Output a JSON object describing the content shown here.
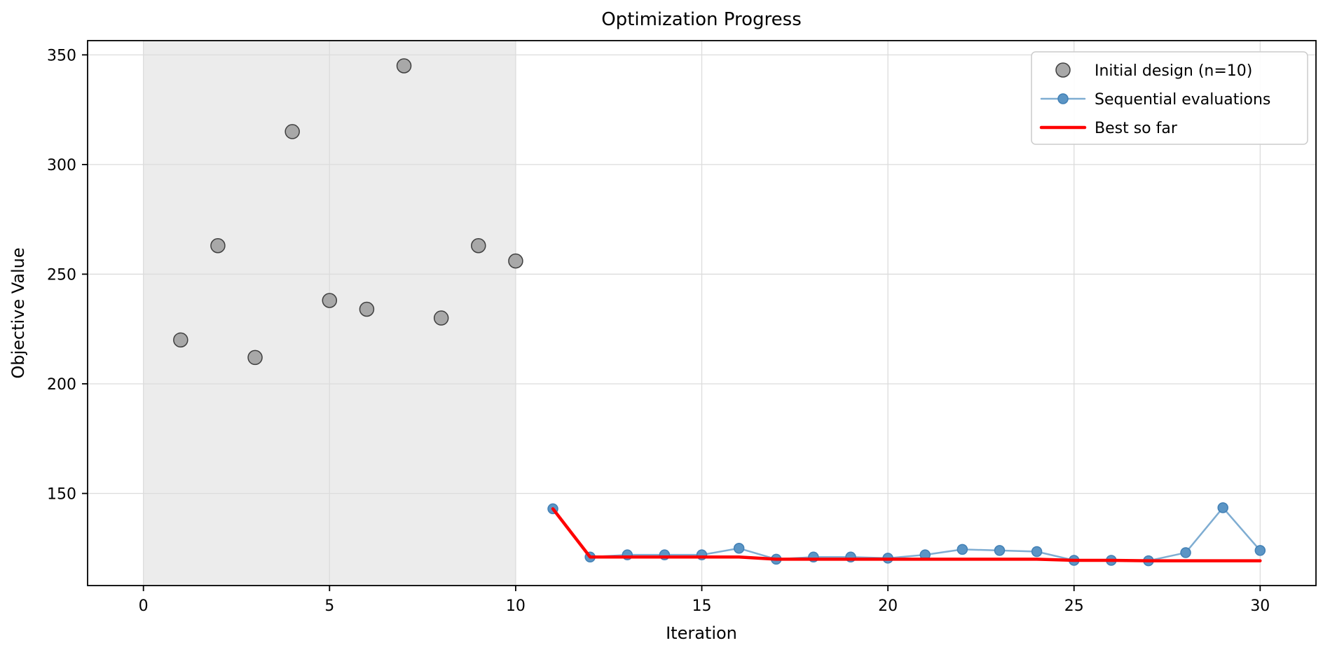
{
  "figure": {
    "title": "Optimization Progress",
    "xlabel": "Iteration",
    "ylabel": "Objective Value"
  },
  "chart_data": {
    "type": "scatter",
    "title": "Optimization Progress",
    "xlabel": "Iteration",
    "ylabel": "Objective Value",
    "xlim": [
      -1.5,
      31.5
    ],
    "ylim": [
      108,
      356.5
    ],
    "xticks": [
      0,
      5,
      10,
      15,
      20,
      25,
      30
    ],
    "yticks": [
      150,
      200,
      250,
      300,
      350
    ],
    "grid": true,
    "grid_color": "#dcdcdc",
    "background_color": "#ffffff",
    "shaded_region": {
      "x_start": 0,
      "x_end": 10,
      "color": "#ececec",
      "meaning": "initial design phase"
    },
    "series": [
      {
        "name": "Initial design (n=10)",
        "type": "scatter",
        "x": [
          1,
          2,
          3,
          4,
          5,
          6,
          7,
          8,
          9,
          10
        ],
        "y": [
          220,
          263,
          212,
          315,
          238,
          234,
          345,
          230,
          263,
          256
        ],
        "marker_color": "#a8a8a8",
        "marker_edge_color": "#3f3f3f",
        "marker_radius": 10
      },
      {
        "name": "Sequential evaluations",
        "type": "line_markers",
        "x": [
          11,
          12,
          13,
          14,
          15,
          16,
          17,
          18,
          19,
          20,
          21,
          22,
          23,
          24,
          25,
          26,
          27,
          28,
          29,
          30
        ],
        "y": [
          143,
          121,
          122,
          122,
          122,
          125,
          120,
          121,
          121,
          120.5,
          122,
          124.5,
          124,
          123.5,
          119.5,
          119.5,
          119.3,
          123,
          143.5,
          124
        ],
        "line_color": "#7fadd2",
        "line_width": 2.5,
        "marker_color": "#5b95c5",
        "marker_edge_color": "#4280b5",
        "marker_radius": 7
      },
      {
        "name": "Best so far",
        "type": "line",
        "x": [
          11,
          12,
          13,
          14,
          15,
          16,
          17,
          18,
          19,
          20,
          21,
          22,
          23,
          24,
          25,
          26,
          27,
          28,
          29,
          30
        ],
        "y": [
          143,
          121,
          121,
          121,
          121,
          121,
          120,
          120,
          120,
          120,
          120,
          120,
          120,
          120,
          119.5,
          119.5,
          119.3,
          119.3,
          119.3,
          119.3
        ],
        "line_color": "#ff0000",
        "line_width": 4.5
      }
    ],
    "legend": {
      "position": "upper right",
      "entries": [
        "Initial design (n=10)",
        "Sequential evaluations",
        "Best so far"
      ],
      "border_color": "#cccccc",
      "background_color": "#ffffff"
    }
  }
}
